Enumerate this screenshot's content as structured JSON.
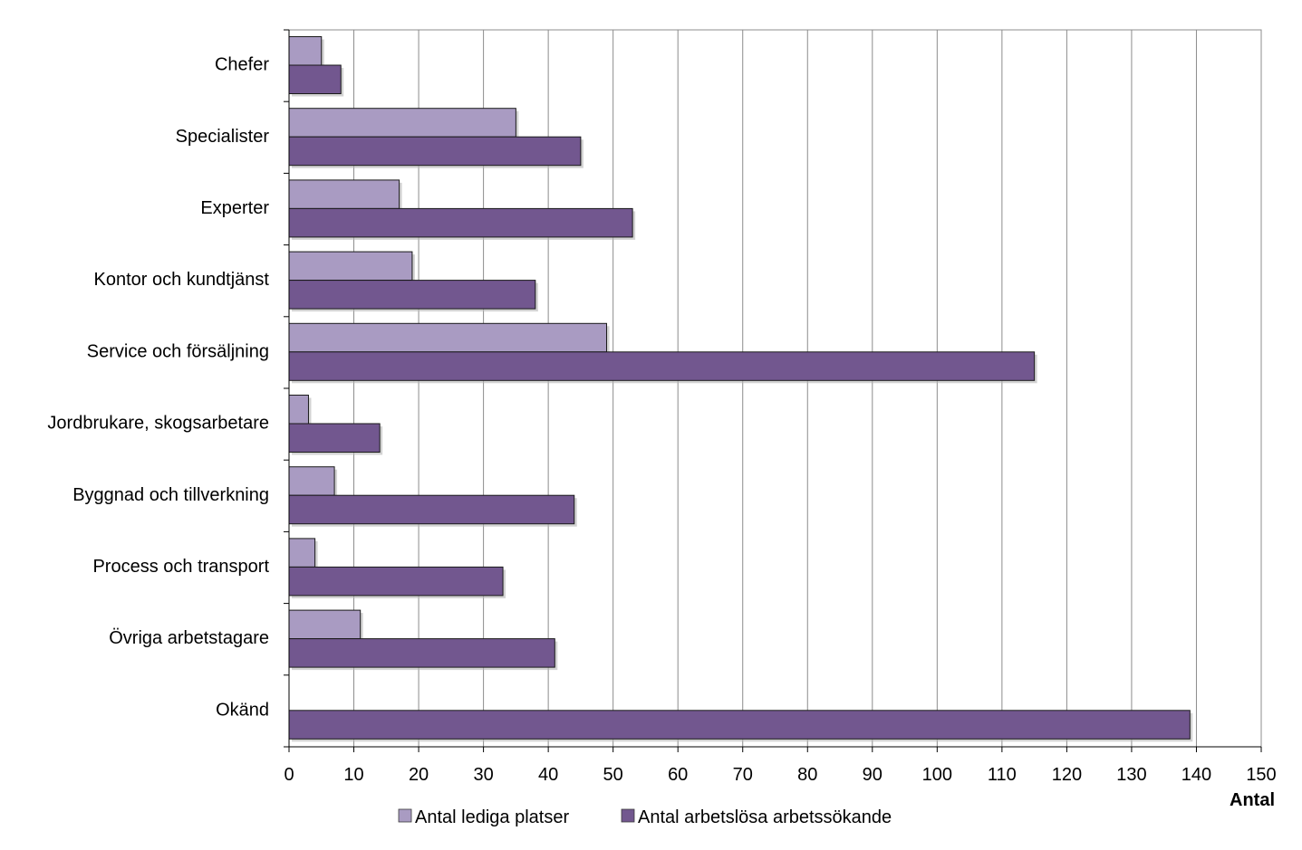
{
  "chart_data": {
    "type": "bar",
    "orientation": "horizontal",
    "categories": [
      "Chefer",
      "Specialister",
      "Experter",
      "Kontor och kundtjänst",
      "Service och försäljning",
      "Jordbrukare, skogsarbetare",
      "Byggnad och tillverkning",
      "Process och transport",
      "Övriga arbetstagare",
      "Okänd"
    ],
    "series": [
      {
        "name": "Antal lediga platser",
        "color": "#a99bc2",
        "values": [
          5,
          35,
          17,
          19,
          49,
          3,
          7,
          4,
          11,
          0
        ]
      },
      {
        "name": "Antal arbetslösa arbetssökande",
        "color": "#72578f",
        "values": [
          8,
          45,
          53,
          38,
          115,
          14,
          44,
          33,
          41,
          139
        ]
      }
    ],
    "xlabel": "Antal",
    "xlim": [
      0,
      150
    ],
    "xticks": [
      0,
      10,
      20,
      30,
      40,
      50,
      60,
      70,
      80,
      90,
      100,
      110,
      120,
      130,
      140,
      150
    ],
    "grid": "vertical",
    "legend_position": "bottom"
  }
}
